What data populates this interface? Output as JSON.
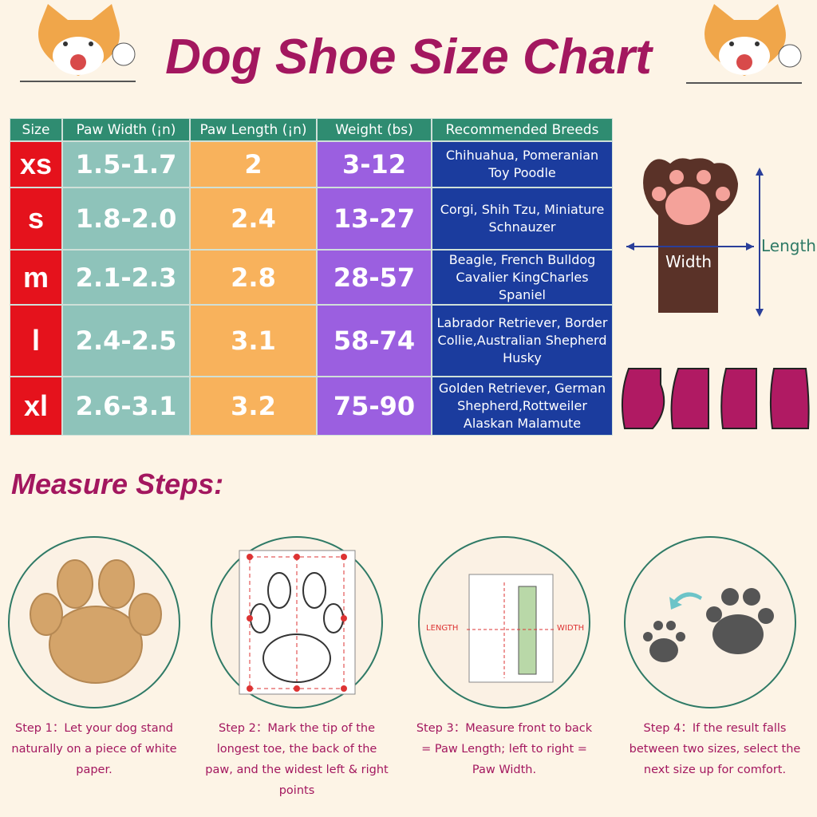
{
  "title": "Dog Shoe Size Chart",
  "table": {
    "headers": [
      "Size",
      "Paw Width (¡n)",
      "Paw Length (¡n)",
      "Weight (bs)",
      "Recommended Breeds"
    ],
    "rows": [
      [
        "xs",
        "1.5-1.7",
        "2",
        "3-12",
        [
          "Chihuahua, Pomeranian",
          "Toy Poodle"
        ]
      ],
      [
        "s",
        "1.8-2.0",
        "2.4",
        "13-27",
        [
          "Corgi, Shih Tzu, Miniature",
          "Schnauzer"
        ]
      ],
      [
        "m",
        "2.1-2.3",
        "2.8",
        "28-57",
        [
          "Beagle, French Bulldog",
          "Cavalier KingCharles",
          "Spaniel"
        ]
      ],
      [
        "l",
        "2.4-2.5",
        "3.1",
        "58-74",
        [
          "Labrador Retriever, Border",
          "Collie,Australian Shepherd",
          "Husky"
        ]
      ],
      [
        "xl",
        "2.6-3.1",
        "3.2",
        "75-90",
        [
          "Golden Retriever, German",
          "Shepherd,Rottweiler",
          "Alaskan Malamute"
        ]
      ]
    ]
  },
  "diagram": {
    "width_label": "Width",
    "length_label": "Length"
  },
  "steps_title": "Measure Steps:",
  "step3_labels": [
    "LENGTH",
    "WIDTH"
  ],
  "steps": [
    "Step 1：Let your dog stand naturally on a piece of white paper.",
    "Step 2：Mark the tip of the longest toe, the back of the paw, and the widest left & right points",
    "Step 3：Measure front to back = Paw Length; left to right = Paw Width.",
    "Step 4：If the result falls between two sizes, select the next size up for comfort."
  ]
}
